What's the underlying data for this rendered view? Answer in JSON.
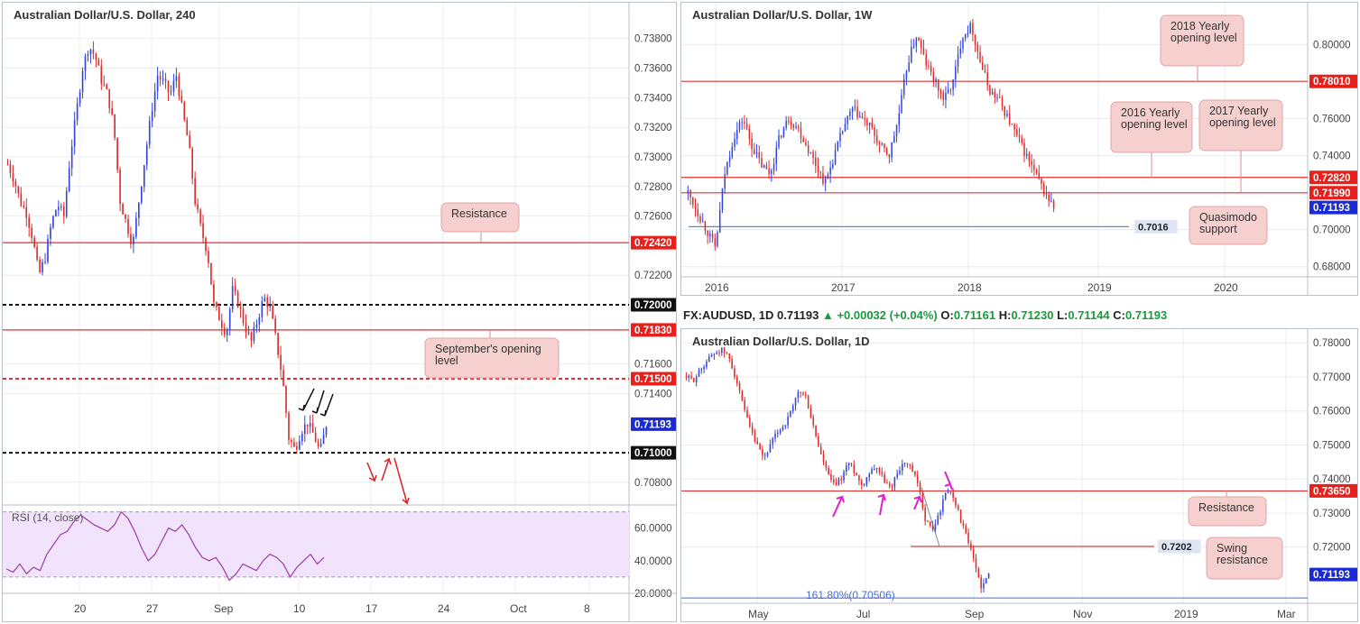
{
  "colors": {
    "bull": "#3344dd",
    "bear": "#dd2b2b",
    "resistance_line": "#e03030",
    "blue_line": "#6b7fe0",
    "label_red": "#e8201b",
    "label_blue": "#1a2bd6",
    "callout_bg": "#f6cfcf",
    "rsi_fill": "#f1e3fb",
    "rsi_line": "#9c3aa6",
    "grid": "#e8ecf0",
    "arrow_magenta": "#e020d0"
  },
  "info_bar": {
    "symbol": "FX:AUDUSD, 1D",
    "last": "0.71193",
    "change": "+0.00032 (+0.04%)",
    "o_label": "O:",
    "o": "0.71161",
    "h_label": "H:",
    "h": "0.71230",
    "l_label": "L:",
    "l": "0.71144",
    "c_label": "C:",
    "c": "0.71193"
  },
  "chart_data": [
    {
      "id": "h4",
      "type": "candlestick",
      "title": "Australian Dollar/U.S. Dollar, 240",
      "ylim": [
        0.7072,
        0.7392
      ],
      "y_ticks": [
        "0.73800",
        "0.73600",
        "0.73400",
        "0.73200",
        "0.73000",
        "0.72800",
        "0.72600",
        "0.72200",
        "0.71600",
        "0.71400",
        "0.70800"
      ],
      "x_ticks": [
        "20",
        "27",
        "Sep",
        "10",
        "17",
        "24",
        "Oct",
        "8"
      ],
      "price_path": [
        0.7295,
        0.7285,
        0.727,
        0.7262,
        0.7245,
        0.722,
        0.7232,
        0.7255,
        0.7268,
        0.726,
        0.73,
        0.733,
        0.736,
        0.7375,
        0.7368,
        0.7352,
        0.7342,
        0.732,
        0.727,
        0.7255,
        0.724,
        0.727,
        0.73,
        0.733,
        0.7355,
        0.735,
        0.7342,
        0.7355,
        0.733,
        0.7308,
        0.727,
        0.725,
        0.7235,
        0.72,
        0.719,
        0.718,
        0.721,
        0.72,
        0.7185,
        0.7175,
        0.719,
        0.7205,
        0.7198,
        0.7175,
        0.715,
        0.711,
        0.7102,
        0.7115,
        0.712,
        0.7112,
        0.71,
        0.7119
      ],
      "levels": [
        {
          "value": 0.7242,
          "label": "0.72420",
          "style": "solid",
          "color": "#e03030",
          "tag_bg": "#e8201b"
        },
        {
          "value": 0.72,
          "label": "0.72000",
          "style": "dashed",
          "color": "#111111",
          "tag_bg": "#111111"
        },
        {
          "value": 0.7183,
          "label": "0.71830",
          "style": "solid",
          "color": "#e03030",
          "tag_bg": "#e8201b"
        },
        {
          "value": 0.715,
          "label": "0.71500",
          "style": "dashed",
          "color": "#e03030",
          "tag_bg": "#e8201b"
        },
        {
          "value": 0.71,
          "label": "0.71000",
          "style": "dashed",
          "color": "#111111",
          "tag_bg": "#111111"
        }
      ],
      "last_price": {
        "value": 0.71193,
        "label": "0.71193"
      },
      "annotations": [
        {
          "id": "resistance",
          "text": "Resistance"
        },
        {
          "id": "sept-open",
          "text": "September's opening level"
        }
      ],
      "rsi": {
        "label": "RSI (14, close)",
        "ylim": [
          20,
          72
        ],
        "y_ticks": [
          "60.0000",
          "40.0000",
          "20.0000"
        ],
        "values": [
          35,
          33,
          38,
          32,
          36,
          34,
          44,
          50,
          56,
          58,
          64,
          68,
          65,
          62,
          60,
          58,
          62,
          70,
          66,
          58,
          48,
          40,
          44,
          52,
          60,
          58,
          62,
          56,
          48,
          42,
          40,
          42,
          36,
          28,
          32,
          38,
          36,
          34,
          40,
          44,
          42,
          38,
          30,
          36,
          40,
          44,
          38,
          42
        ]
      }
    },
    {
      "id": "weekly",
      "type": "candlestick",
      "title": "Australian Dollar/U.S. Dollar, 1W",
      "ylim": [
        0.6745,
        0.8216
      ],
      "y_ticks": [
        "0.80000",
        "0.76000",
        "0.74000",
        "0.70000",
        "0.68000"
      ],
      "x_ticks": [
        "2016",
        "2017",
        "2018",
        "2019",
        "2020"
      ],
      "price_path": [
        0.72,
        0.71,
        0.7,
        0.69,
        0.73,
        0.75,
        0.76,
        0.745,
        0.735,
        0.73,
        0.75,
        0.76,
        0.755,
        0.745,
        0.735,
        0.725,
        0.74,
        0.755,
        0.765,
        0.76,
        0.755,
        0.745,
        0.74,
        0.76,
        0.79,
        0.805,
        0.79,
        0.78,
        0.77,
        0.78,
        0.805,
        0.81,
        0.79,
        0.775,
        0.77,
        0.76,
        0.75,
        0.74,
        0.73,
        0.72,
        0.7119
      ],
      "levels": [
        {
          "value": 0.7801,
          "label": "0.78010",
          "style": "solid",
          "color": "#e03030",
          "tag_bg": "#e8201b"
        },
        {
          "value": 0.7282,
          "label": "0.72820",
          "style": "solid",
          "color": "#e03030",
          "tag_bg": "#e8201b"
        },
        {
          "value": 0.7199,
          "label": "0.71990",
          "style": "solid",
          "color": "#e03030",
          "tag_bg": "#e8201b"
        }
      ],
      "last_price": {
        "value": 0.71193,
        "label": "0.71193"
      },
      "blue_level": {
        "value": 0.7016,
        "label": "0.7016"
      },
      "annotations": [
        {
          "id": "y2018",
          "text": "2018 Yearly opening level"
        },
        {
          "id": "y2016",
          "text": "2016 Yearly opening level"
        },
        {
          "id": "y2017",
          "text": "2017 Yearly opening level"
        },
        {
          "id": "qm",
          "text": "Quasimodo support"
        }
      ]
    },
    {
      "id": "daily",
      "type": "candlestick",
      "title": "Australian Dollar/U.S. Dollar, 1D",
      "ylim": [
        0.7035,
        0.7835
      ],
      "y_ticks": [
        "0.78000",
        "0.77000",
        "0.76000",
        "0.75000",
        "0.74000",
        "0.73000",
        "0.72000"
      ],
      "x_ticks": [
        "May",
        "Jul",
        "Sep",
        "Nov",
        "2019",
        "Mar"
      ],
      "price_path": [
        0.77,
        0.769,
        0.772,
        0.775,
        0.777,
        0.778,
        0.776,
        0.77,
        0.762,
        0.755,
        0.75,
        0.746,
        0.75,
        0.754,
        0.756,
        0.76,
        0.766,
        0.764,
        0.756,
        0.748,
        0.742,
        0.738,
        0.74,
        0.745,
        0.742,
        0.738,
        0.742,
        0.744,
        0.74,
        0.737,
        0.742,
        0.745,
        0.743,
        0.738,
        0.728,
        0.725,
        0.73,
        0.737,
        0.735,
        0.728,
        0.722,
        0.715,
        0.708,
        0.7119
      ],
      "levels": [
        {
          "value": 0.7365,
          "label": "0.73650",
          "style": "solid",
          "color": "#e03030",
          "tag_bg": "#e8201b"
        }
      ],
      "last_price": {
        "value": 0.71193,
        "label": "0.71193"
      },
      "swing_level": {
        "value": 0.7202,
        "label": "0.7202"
      },
      "fib": {
        "value": 0.70506,
        "label": "161.80%(0.70506)"
      },
      "annotations": [
        {
          "id": "res",
          "text": "Resistance"
        },
        {
          "id": "swing",
          "text": "Swing resistance"
        }
      ]
    }
  ]
}
